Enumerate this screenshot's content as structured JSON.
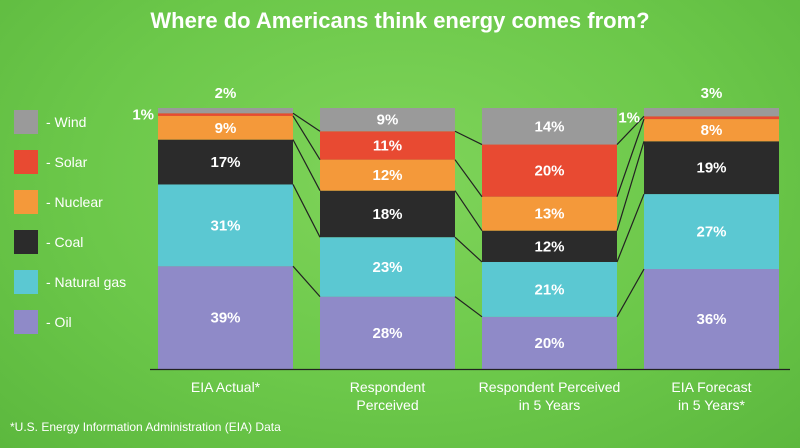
{
  "chart_data": {
    "type": "bar",
    "stacked": true,
    "title": "Where do Americans think energy comes from?",
    "categories": [
      "EIA Actual*",
      "Respondent Perceived",
      "Respondent Perceived in 5 Years",
      "EIA Forecast in 5 Years*"
    ],
    "category_lines": [
      [
        "EIA Actual*"
      ],
      [
        "Respondent",
        "Perceived"
      ],
      [
        "Respondent Perceived",
        "in 5 Years"
      ],
      [
        "EIA Forecast",
        "in 5 Years*"
      ]
    ],
    "series": [
      {
        "name": "Oil",
        "color": "#8f8ac8",
        "values": [
          39,
          28,
          20,
          36
        ]
      },
      {
        "name": "Natural gas",
        "color": "#5bc8d2",
        "values": [
          31,
          23,
          21,
          27
        ]
      },
      {
        "name": "Coal",
        "color": "#2b2b2b",
        "values": [
          17,
          18,
          12,
          19
        ]
      },
      {
        "name": "Nuclear",
        "color": "#f4993a",
        "values": [
          9,
          12,
          13,
          8
        ]
      },
      {
        "name": "Solar",
        "color": "#e84a32",
        "values": [
          1,
          11,
          20,
          1
        ]
      },
      {
        "name": "Wind",
        "color": "#9a9a9a",
        "values": [
          2,
          9,
          14,
          3
        ]
      }
    ],
    "value_labels": [
      [
        "39%",
        "28%",
        "20%",
        "36%"
      ],
      [
        "31%",
        "23%",
        "21%",
        "27%"
      ],
      [
        "17%",
        "18%",
        "12%",
        "19%"
      ],
      [
        "9%",
        "12%",
        "13%",
        "8%"
      ],
      [
        "1%",
        "11%",
        "20%",
        "1%"
      ],
      [
        "2%",
        "9%",
        "14%",
        "3%"
      ]
    ],
    "legend_position": "left",
    "grid": false
  },
  "legend": {
    "items": [
      {
        "label": "- Wind",
        "color": "#9a9a9a"
      },
      {
        "label": "- Solar",
        "color": "#e84a32"
      },
      {
        "label": "- Nuclear",
        "color": "#f4993a"
      },
      {
        "label": "- Coal",
        "color": "#2b2b2b"
      },
      {
        "label": "- Natural gas",
        "color": "#5bc8d2"
      },
      {
        "label": "- Oil",
        "color": "#8f8ac8"
      }
    ]
  },
  "footnote": "*U.S. Energy Information Administration (EIA) Data"
}
